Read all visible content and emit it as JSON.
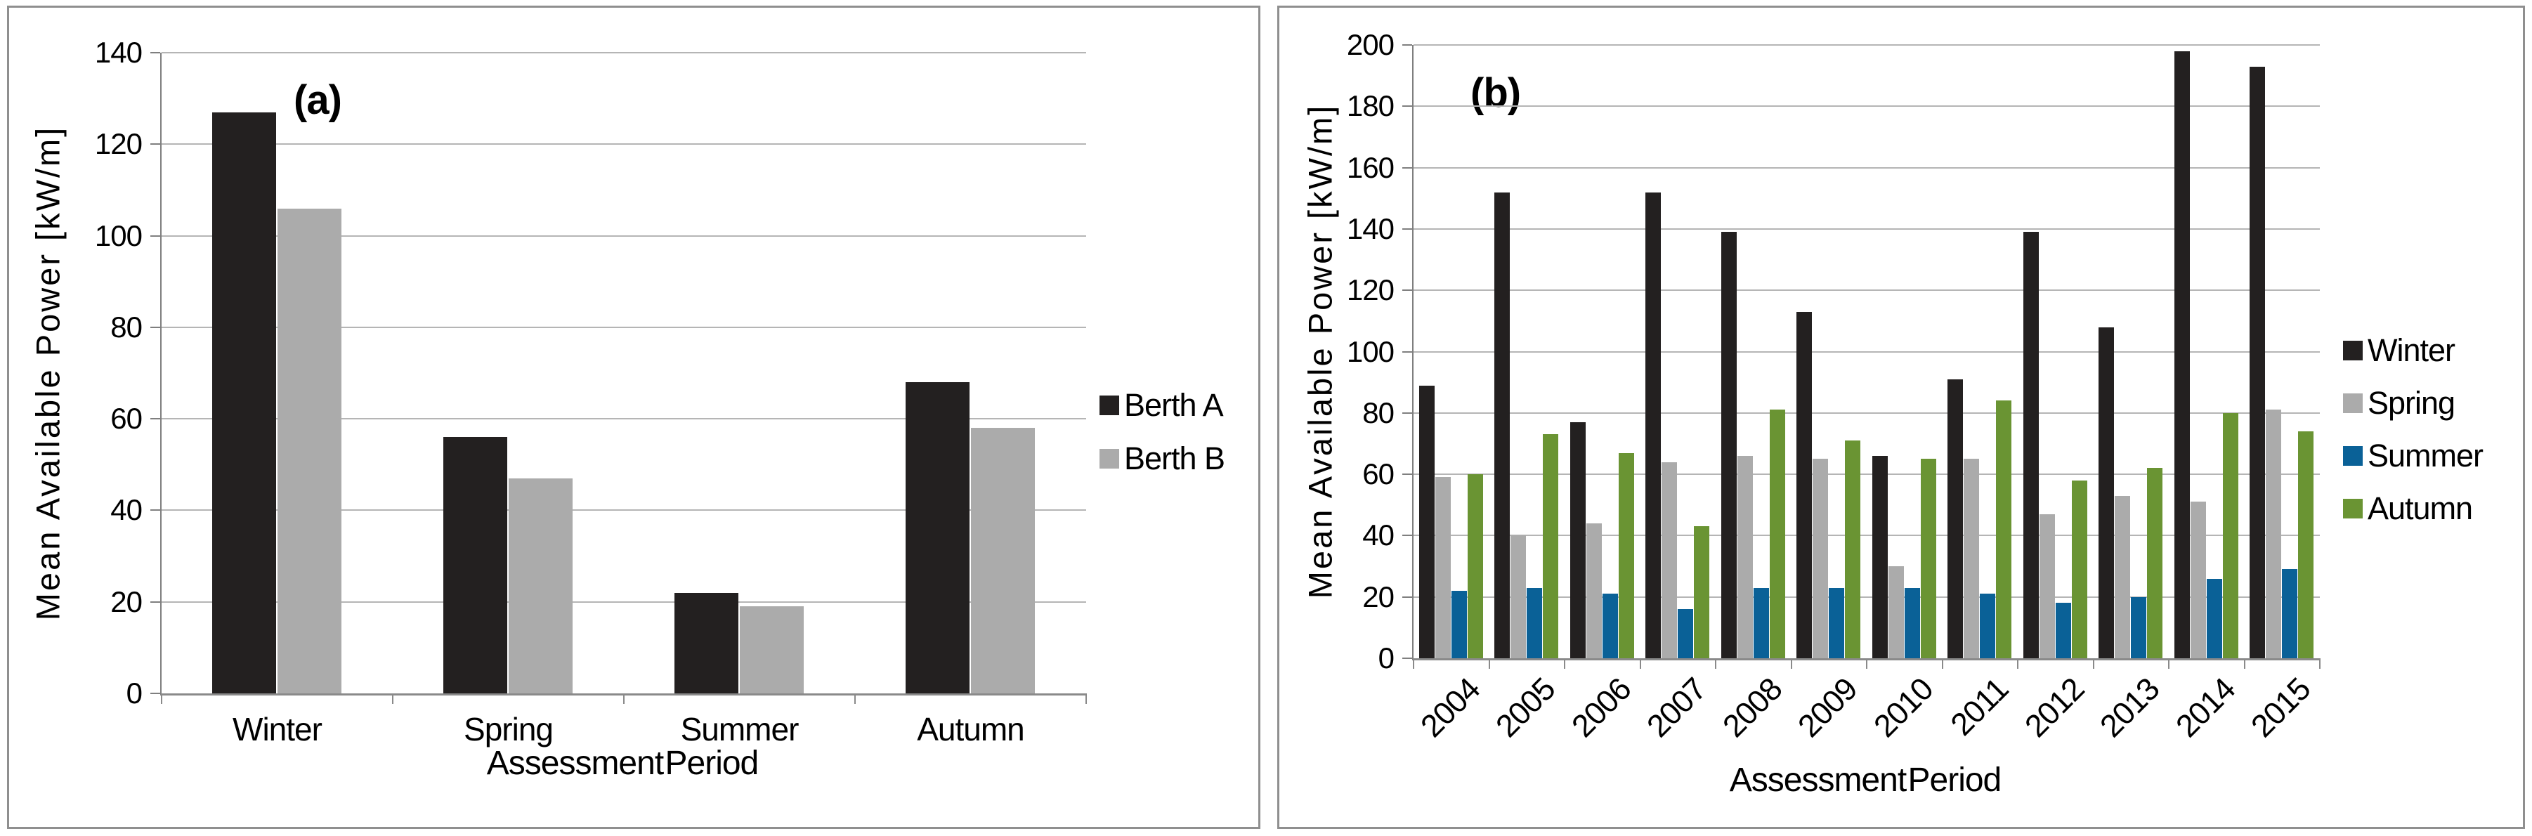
{
  "figure": {
    "description": "Two-panel seasonal wave power bar figure",
    "panels": [
      "(a)",
      "(b)"
    ]
  },
  "chart_data": [
    {
      "type": "bar",
      "title": "(a)",
      "categories": [
        "Winter",
        "Spring",
        "Summer",
        "Autumn"
      ],
      "series": [
        {
          "name": "Berth A",
          "color": "#232020",
          "values": [
            127,
            56,
            22,
            68
          ]
        },
        {
          "name": "Berth B",
          "color": "#ABABAB",
          "values": [
            106,
            47,
            19,
            58
          ]
        }
      ],
      "xlabel": "Assessment Period",
      "ylabel": "Mean Available Power [kW/m]",
      "ylim": [
        0,
        140
      ],
      "ytick_step": 20,
      "grid": true,
      "legend_position": "right",
      "xlabel_rotation": 0,
      "bar_group_fraction": 0.56
    },
    {
      "type": "bar",
      "title": "(b)",
      "categories": [
        "2004",
        "2005",
        "2006",
        "2007",
        "2008",
        "2009",
        "2010",
        "2011",
        "2012",
        "2013",
        "2014",
        "2015"
      ],
      "series": [
        {
          "name": "Winter",
          "color": "#232020",
          "values": [
            89,
            152,
            77,
            152,
            139,
            113,
            66,
            91,
            139,
            108,
            198,
            193
          ]
        },
        {
          "name": "Spring",
          "color": "#ABABAB",
          "values": [
            59,
            40,
            44,
            64,
            66,
            65,
            30,
            65,
            47,
            53,
            51,
            81
          ]
        },
        {
          "name": "Summer",
          "color": "#0A6197",
          "values": [
            22,
            23,
            21,
            16,
            23,
            23,
            23,
            21,
            18,
            20,
            26,
            29
          ]
        },
        {
          "name": "Autumn",
          "color": "#6A9433",
          "values": [
            60,
            73,
            67,
            43,
            81,
            71,
            65,
            84,
            58,
            62,
            80,
            74
          ]
        }
      ],
      "xlabel": "Assessment Period",
      "ylabel": "Mean Available Power [kW/m]",
      "ylim": [
        0,
        200
      ],
      "ytick_step": 20,
      "grid": true,
      "legend_position": "right",
      "xlabel_rotation": -45,
      "bar_group_fraction": 0.86
    }
  ],
  "colors": {
    "bar_black": "#232020",
    "bar_gray": "#ABABAB",
    "bar_blue": "#0A6197",
    "bar_green": "#6A9433",
    "gridline": "#b5b5b5",
    "axis": "#8a8a8a",
    "panel_border": "#8f8f8f"
  }
}
